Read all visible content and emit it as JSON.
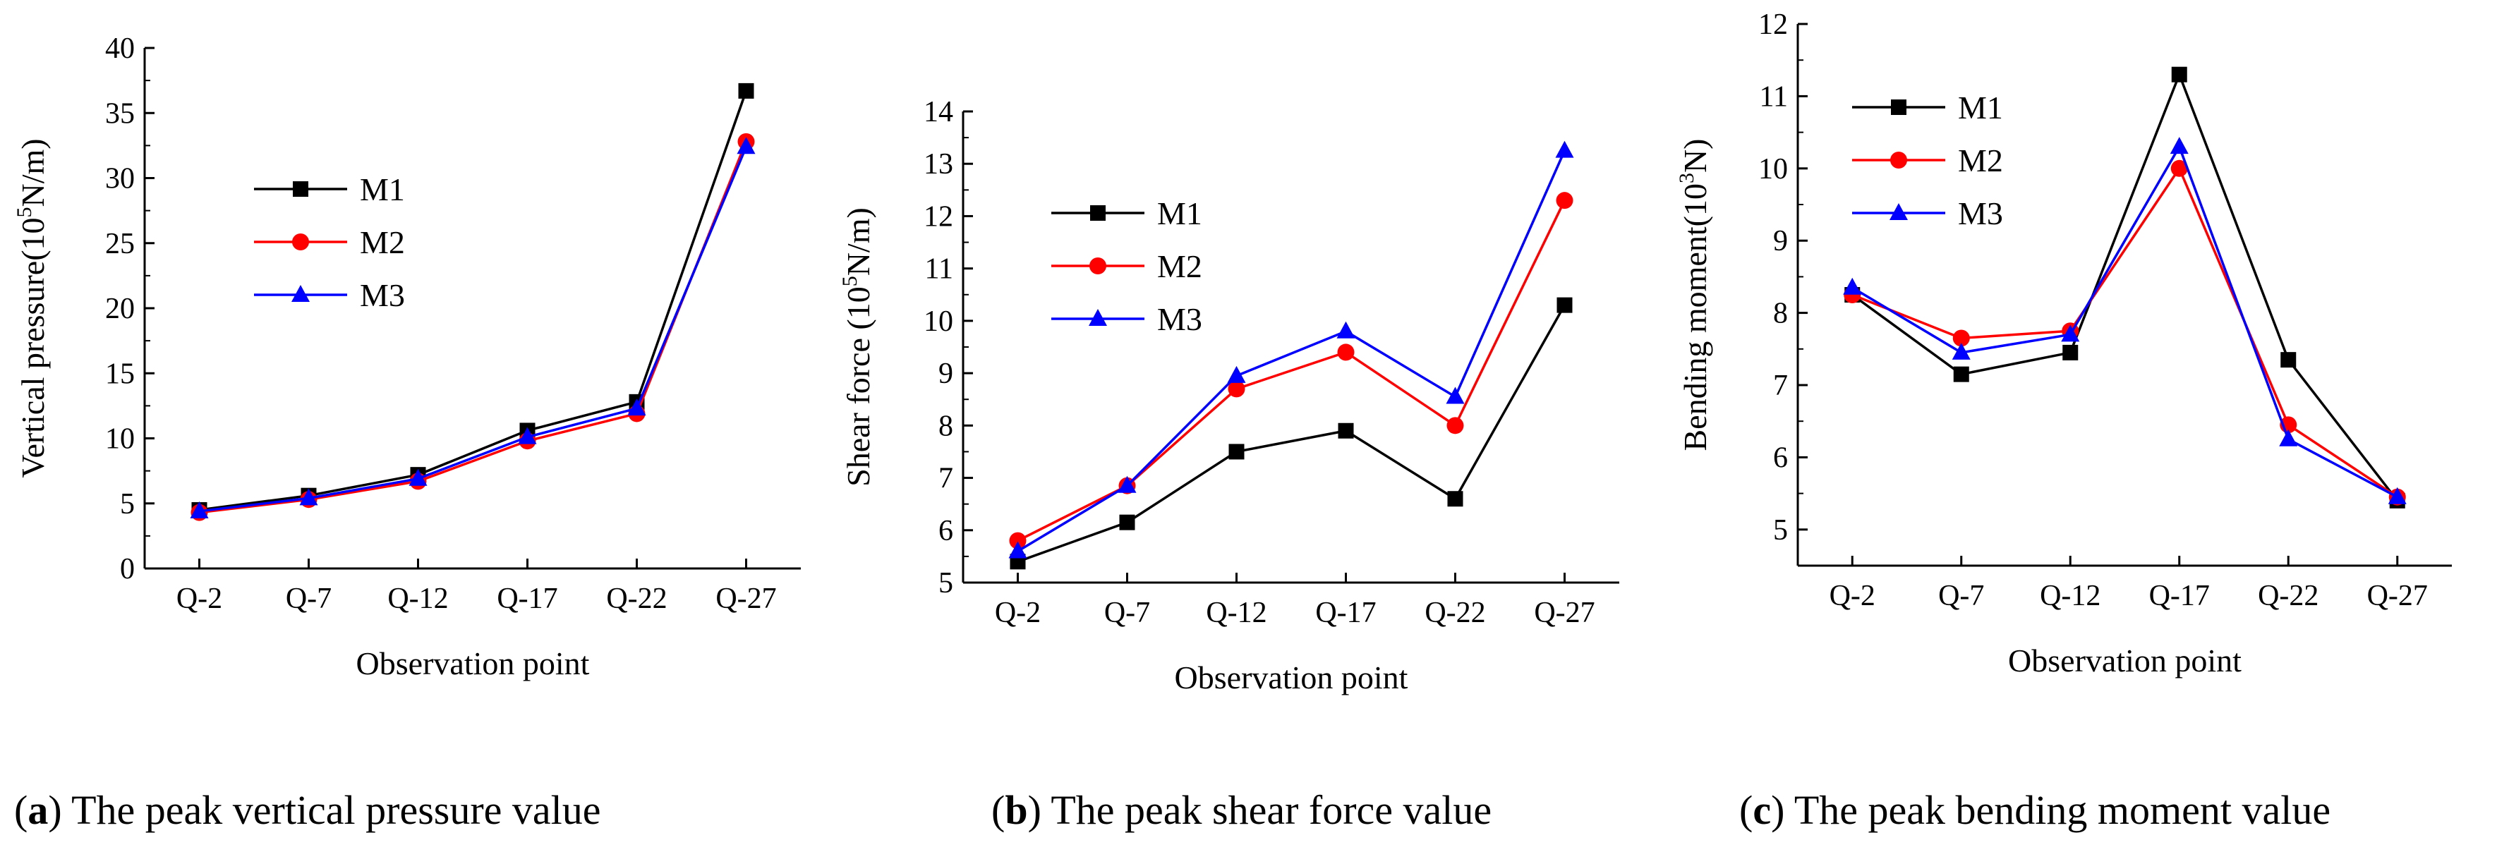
{
  "colors": {
    "M1": "#000000",
    "M2": "#ff0000",
    "M3": "#0000ff"
  },
  "chart_data": [
    {
      "type": "line",
      "caption_letter": "a",
      "caption_text": "The peak vertical pressure value",
      "xlabel": "Observation point",
      "ylabel_prefix": "Vertical pressure(10",
      "ylabel_sup": "5",
      "ylabel_suffix": "N/m)",
      "categories": [
        "Q-2",
        "Q-7",
        "Q-12",
        "Q-17",
        "Q-22",
        "Q-27"
      ],
      "ylim": [
        0,
        40
      ],
      "yticks": [
        0,
        5,
        10,
        15,
        20,
        25,
        30,
        35,
        40
      ],
      "series": [
        {
          "name": "M1",
          "marker": "square",
          "values": [
            4.5,
            5.6,
            7.2,
            10.6,
            12.8,
            36.7
          ]
        },
        {
          "name": "M2",
          "marker": "circle",
          "values": [
            4.3,
            5.3,
            6.7,
            9.8,
            11.9,
            32.8
          ]
        },
        {
          "name": "M3",
          "marker": "triangle",
          "values": [
            4.4,
            5.4,
            6.9,
            10.1,
            12.3,
            32.4
          ]
        }
      ]
    },
    {
      "type": "line",
      "caption_letter": "b",
      "caption_text": "The peak shear force value",
      "xlabel": "Observation point",
      "ylabel_prefix": "Shear force (10",
      "ylabel_sup": "5",
      "ylabel_suffix": "N/m)",
      "categories": [
        "Q-2",
        "Q-7",
        "Q-12",
        "Q-17",
        "Q-22",
        "Q-27"
      ],
      "ylim": [
        5,
        14
      ],
      "yticks": [
        5,
        6,
        7,
        8,
        9,
        10,
        11,
        12,
        13,
        14
      ],
      "series": [
        {
          "name": "M1",
          "marker": "square",
          "values": [
            5.4,
            6.15,
            7.5,
            7.9,
            6.6,
            10.3
          ]
        },
        {
          "name": "M2",
          "marker": "circle",
          "values": [
            5.8,
            6.85,
            8.7,
            9.4,
            8.0,
            12.3
          ]
        },
        {
          "name": "M3",
          "marker": "triangle",
          "values": [
            5.6,
            6.85,
            8.95,
            9.8,
            8.55,
            13.25
          ]
        }
      ]
    },
    {
      "type": "line",
      "caption_letter": "c",
      "caption_text": "The peak bending moment value",
      "xlabel": "Observation point",
      "ylabel_prefix": "Bending moment(10",
      "ylabel_sup": "3",
      "ylabel_suffix": "N)",
      "categories": [
        "Q-2",
        "Q-7",
        "Q-12",
        "Q-17",
        "Q-22",
        "Q-27"
      ],
      "ylim": [
        4.5,
        12
      ],
      "yticks": [
        5,
        6,
        7,
        8,
        9,
        10,
        11,
        12
      ],
      "series": [
        {
          "name": "M1",
          "marker": "square",
          "values": [
            8.25,
            7.15,
            7.45,
            11.3,
            7.35,
            5.4
          ]
        },
        {
          "name": "M2",
          "marker": "circle",
          "values": [
            8.25,
            7.65,
            7.75,
            10.0,
            6.45,
            5.45
          ]
        },
        {
          "name": "M3",
          "marker": "triangle",
          "values": [
            8.35,
            7.45,
            7.7,
            10.3,
            6.25,
            5.45
          ]
        }
      ]
    }
  ]
}
